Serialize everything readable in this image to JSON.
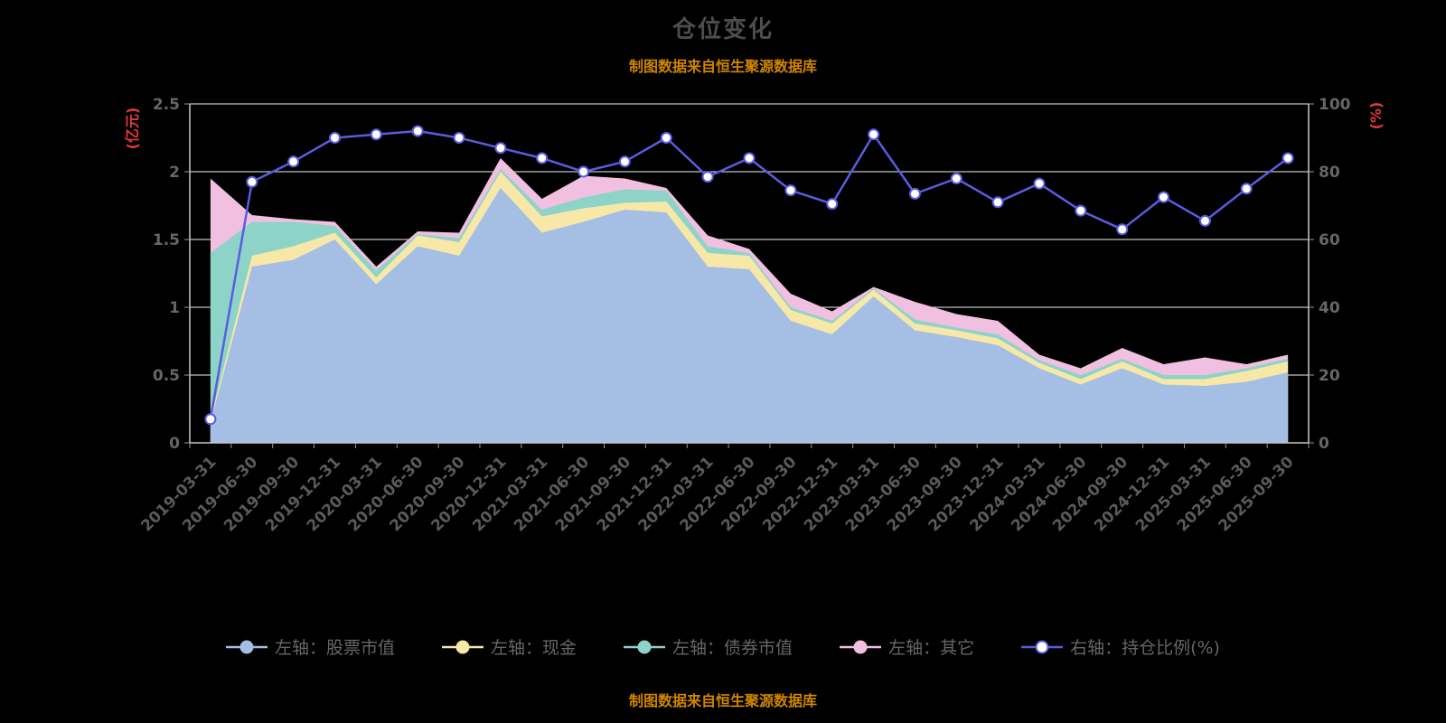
{
  "title": "仓位变化",
  "source_note_top": "制图数据来自恒生聚源数据库",
  "source_note_bottom": "制图数据来自恒生聚源数据库",
  "colors": {
    "background": "#000000",
    "grid": "#f0f0f0",
    "axis_line": "#c9c9c9",
    "tick": "#999999",
    "tick_label": "#666666",
    "x_label": "#5a5a5a",
    "title": "#4d4d4d",
    "note": "#cf8500",
    "axis_unit": "#e53935"
  },
  "chart_data": {
    "type": "area",
    "stacked": true,
    "grid": true,
    "legend_position": "bottom",
    "left_axis": {
      "label": "(亿元)",
      "min": 0,
      "max": 2.5,
      "ticks": [
        0,
        0.5,
        1,
        1.5,
        2,
        2.5
      ]
    },
    "right_axis": {
      "label": "(%)",
      "min": 0,
      "max": 100,
      "ticks": [
        0,
        20,
        40,
        60,
        80,
        100
      ]
    },
    "categories": [
      "2019-03-31",
      "2019-06-30",
      "2019-09-30",
      "2019-12-31",
      "2020-03-31",
      "2020-06-30",
      "2020-09-30",
      "2020-12-31",
      "2021-03-31",
      "2021-06-30",
      "2021-09-30",
      "2021-12-31",
      "2022-03-31",
      "2022-06-30",
      "2022-09-30",
      "2022-12-31",
      "2023-03-31",
      "2023-06-30",
      "2023-09-30",
      "2023-12-31",
      "2024-03-31",
      "2024-06-30",
      "2024-09-30",
      "2024-12-31",
      "2025-03-31",
      "2025-06-30",
      "2025-09-30"
    ],
    "series": [
      {
        "name": "左轴：股票市值",
        "axis": "left",
        "kind": "area",
        "color": "#a4bee4",
        "values": [
          0.15,
          1.3,
          1.35,
          1.5,
          1.17,
          1.45,
          1.38,
          1.88,
          1.55,
          1.63,
          1.72,
          1.7,
          1.3,
          1.28,
          0.9,
          0.8,
          1.08,
          0.83,
          0.78,
          0.72,
          0.55,
          0.43,
          0.55,
          0.43,
          0.42,
          0.45,
          0.52
        ]
      },
      {
        "name": "左轴：现金",
        "axis": "left",
        "kind": "area",
        "color": "#f7e8a8",
        "values": [
          0.02,
          0.08,
          0.1,
          0.05,
          0.05,
          0.08,
          0.1,
          0.12,
          0.12,
          0.1,
          0.05,
          0.08,
          0.1,
          0.1,
          0.08,
          0.08,
          0.05,
          0.05,
          0.05,
          0.05,
          0.04,
          0.04,
          0.05,
          0.04,
          0.05,
          0.08,
          0.08
        ]
      },
      {
        "name": "左轴：债券市值",
        "axis": "left",
        "kind": "area",
        "color": "#8ed3c8",
        "values": [
          1.23,
          0.25,
          0.18,
          0.05,
          0.05,
          0.01,
          0.03,
          0.02,
          0.05,
          0.08,
          0.1,
          0.08,
          0.05,
          0.02,
          0.02,
          0.02,
          0.01,
          0.03,
          0.02,
          0.03,
          0.02,
          0.03,
          0.02,
          0.03,
          0.03,
          0.02,
          0.02
        ]
      },
      {
        "name": "左轴：其它",
        "axis": "left",
        "kind": "area",
        "color": "#f1c0e0",
        "values": [
          0.55,
          0.05,
          0.02,
          0.03,
          0.03,
          0.02,
          0.04,
          0.08,
          0.08,
          0.16,
          0.08,
          0.02,
          0.08,
          0.03,
          0.1,
          0.07,
          0.01,
          0.13,
          0.1,
          0.1,
          0.04,
          0.05,
          0.08,
          0.08,
          0.13,
          0.03,
          0.03
        ]
      },
      {
        "name": "右轴：持仓比例(%)",
        "axis": "right",
        "kind": "line",
        "color": "#5a5ce0",
        "marker_fill": "#ffffff",
        "values": [
          7,
          77,
          83,
          90,
          91,
          92,
          90,
          87,
          84,
          80,
          83,
          90,
          78.5,
          84,
          74.5,
          70.5,
          91,
          73.5,
          78,
          71,
          76.5,
          68.5,
          63,
          72.5,
          65.5,
          75,
          84
        ]
      }
    ]
  }
}
